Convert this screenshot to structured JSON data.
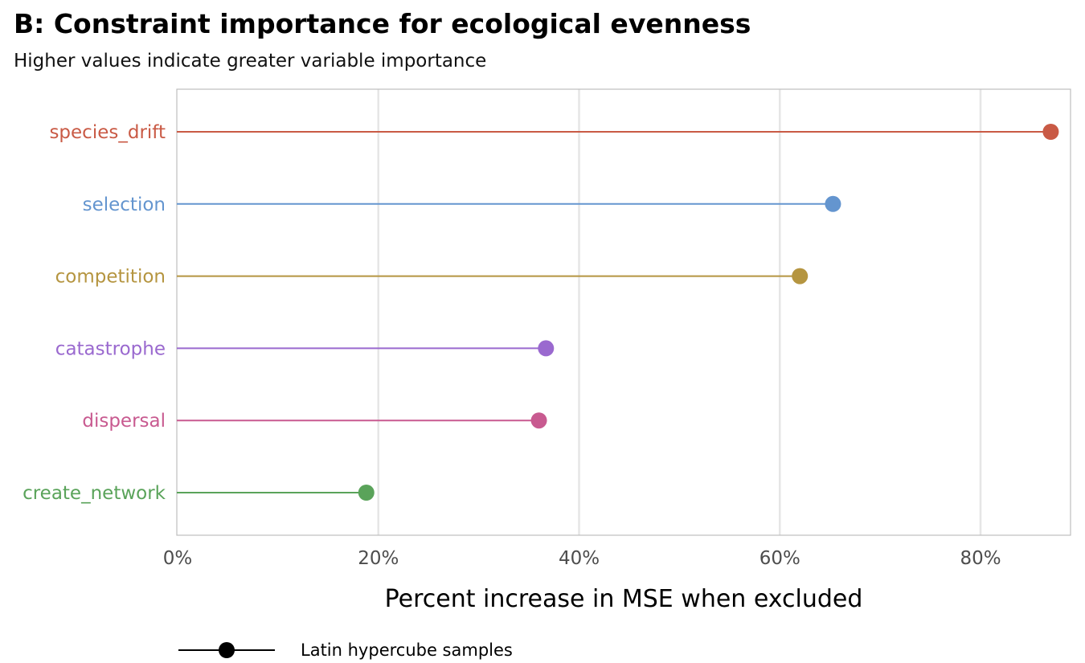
{
  "chart_data": {
    "type": "lollipop",
    "title": "B: Constraint importance for ecological evenness",
    "subtitle": "Higher values indicate greater variable importance",
    "xlabel": "Percent increase in MSE when excluded",
    "ylabel": "",
    "xlim": [
      0,
      89
    ],
    "x_ticks": [
      0,
      20,
      40,
      60,
      80
    ],
    "x_tick_labels": [
      "0%",
      "20%",
      "40%",
      "60%",
      "80%"
    ],
    "grid": "vertical major",
    "categories": [
      "species_drift",
      "selection",
      "competition",
      "catastrophe",
      "dispersal",
      "create_network"
    ],
    "values": [
      87.0,
      65.3,
      62.0,
      36.7,
      36.0,
      18.8
    ],
    "colors": [
      "#c95a45",
      "#6495cf",
      "#b59540",
      "#9a69cf",
      "#c85a90",
      "#5aa35a"
    ],
    "legend": {
      "position": "bottom-left",
      "entries": [
        {
          "label": "Latin hypercube samples",
          "symbol": "line-point",
          "color": "#000000"
        }
      ]
    }
  }
}
